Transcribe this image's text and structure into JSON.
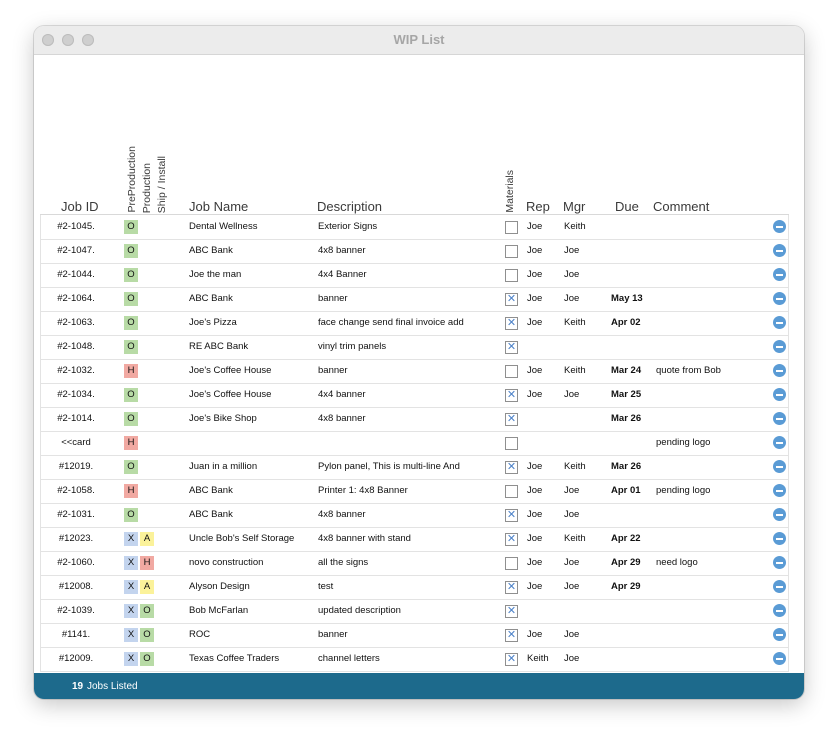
{
  "window": {
    "title": "WIP List"
  },
  "headers": {
    "job_id": "Job ID",
    "preproduction": "PreProduction",
    "production": "Production",
    "ship_install": "Ship / Install",
    "job_name": "Job Name",
    "description": "Description",
    "materials": "Materials",
    "rep": "Rep",
    "mgr": "Mgr",
    "due": "Due",
    "comment": "Comment"
  },
  "rows": [
    {
      "job_id": "#2-1045.",
      "badges": [
        "O"
      ],
      "job_name": "Dental Wellness",
      "description": "Exterior Signs",
      "materials": false,
      "rep": "Joe",
      "mgr": "Keith",
      "due": "",
      "comment": ""
    },
    {
      "job_id": "#2-1047.",
      "badges": [
        "O"
      ],
      "job_name": "ABC Bank",
      "description": "4x8 banner",
      "materials": false,
      "rep": "Joe",
      "mgr": "Joe",
      "due": "",
      "comment": ""
    },
    {
      "job_id": "#2-1044.",
      "badges": [
        "O"
      ],
      "job_name": "Joe the man",
      "description": "4x4 Banner",
      "materials": false,
      "rep": "Joe",
      "mgr": "Joe",
      "due": "",
      "comment": ""
    },
    {
      "job_id": "#2-1064.",
      "badges": [
        "O"
      ],
      "job_name": "ABC Bank",
      "description": "banner",
      "materials": true,
      "rep": "Joe",
      "mgr": "Joe",
      "due": "May 13",
      "comment": ""
    },
    {
      "job_id": "#2-1063.",
      "badges": [
        "O"
      ],
      "job_name": "Joe's Pizza",
      "description": "face change send final invoice add",
      "materials": true,
      "rep": "Joe",
      "mgr": "Keith",
      "due": "Apr 02",
      "comment": ""
    },
    {
      "job_id": "#2-1048.",
      "badges": [
        "O"
      ],
      "job_name": "RE ABC Bank",
      "description": "vinyl trim panels",
      "materials": true,
      "rep": "",
      "mgr": "",
      "due": "",
      "comment": ""
    },
    {
      "job_id": "#2-1032.",
      "badges": [
        "H"
      ],
      "job_name": "Joe's Coffee House",
      "description": "banner",
      "materials": false,
      "rep": "Joe",
      "mgr": "Keith",
      "due": "Mar 24",
      "comment": "quote from Bob"
    },
    {
      "job_id": "#2-1034.",
      "badges": [
        "O"
      ],
      "job_name": "Joe's Coffee House",
      "description": "4x4 banner",
      "materials": true,
      "rep": "Joe",
      "mgr": "Joe",
      "due": "Mar 25",
      "comment": ""
    },
    {
      "job_id": "#2-1014.",
      "badges": [
        "O"
      ],
      "job_name": "Joe's Bike Shop",
      "description": "4x8 banner",
      "materials": true,
      "rep": "",
      "mgr": "",
      "due": "Mar 26",
      "comment": ""
    },
    {
      "job_id": "<<card",
      "badges": [
        "H"
      ],
      "job_name": "",
      "description": "",
      "materials": false,
      "rep": "",
      "mgr": "",
      "due": "",
      "comment": "pending logo"
    },
    {
      "job_id": "#12019.",
      "badges": [
        "O"
      ],
      "job_name": "Juan in a million",
      "description": "Pylon panel, This is multi-line And",
      "materials": true,
      "rep": "Joe",
      "mgr": "Keith",
      "due": "Mar 26",
      "comment": ""
    },
    {
      "job_id": "#2-1058.",
      "badges": [
        "H"
      ],
      "job_name": "ABC Bank",
      "description": "Printer 1: 4x8 Banner",
      "materials": false,
      "rep": "Joe",
      "mgr": "Joe",
      "due": "Apr 01",
      "comment": "pending logo"
    },
    {
      "job_id": "#2-1031.",
      "badges": [
        "O"
      ],
      "job_name": "ABC Bank",
      "description": "4x8 banner",
      "materials": true,
      "rep": "Joe",
      "mgr": "Joe",
      "due": "",
      "comment": ""
    },
    {
      "job_id": "#12023.",
      "badges": [
        "X",
        "A"
      ],
      "job_name": "Uncle Bob's Self Storage",
      "description": "4x8 banner with stand",
      "materials": true,
      "rep": "Joe",
      "mgr": "Keith",
      "due": "Apr 22",
      "comment": ""
    },
    {
      "job_id": "#2-1060.",
      "badges": [
        "X",
        "H"
      ],
      "job_name": "novo construction",
      "description": "all the signs",
      "materials": false,
      "rep": "Joe",
      "mgr": "Joe",
      "due": "Apr 29",
      "comment": "need logo"
    },
    {
      "job_id": "#12008.",
      "badges": [
        "X",
        "A"
      ],
      "job_name": "Alyson Design",
      "description": "test",
      "materials": true,
      "rep": "Joe",
      "mgr": "Joe",
      "due": "Apr 29",
      "comment": ""
    },
    {
      "job_id": "#2-1039.",
      "badges": [
        "X",
        "O"
      ],
      "job_name": "Bob McFarlan",
      "description": "updated description",
      "materials": true,
      "rep": "",
      "mgr": "",
      "due": "",
      "comment": ""
    },
    {
      "job_id": "#1141.",
      "badges": [
        "X",
        "O"
      ],
      "job_name": "ROC",
      "description": "banner",
      "materials": true,
      "rep": "Joe",
      "mgr": "Joe",
      "due": "",
      "comment": ""
    },
    {
      "job_id": "#12009.",
      "badges": [
        "X",
        "O"
      ],
      "job_name": "Texas Coffee Traders",
      "description": "channel letters",
      "materials": true,
      "rep": "Keith",
      "mgr": "Joe",
      "due": "",
      "comment": ""
    }
  ],
  "footer": {
    "count": "19",
    "label": "Jobs Listed"
  },
  "colors": {
    "status_O": "#b8dba6",
    "status_H": "#f1a9a2",
    "status_A": "#fbf29a",
    "status_X": "#c3d4ee",
    "footer_bg": "#1d6a8c",
    "remove_icon": "#5a9bd5"
  }
}
